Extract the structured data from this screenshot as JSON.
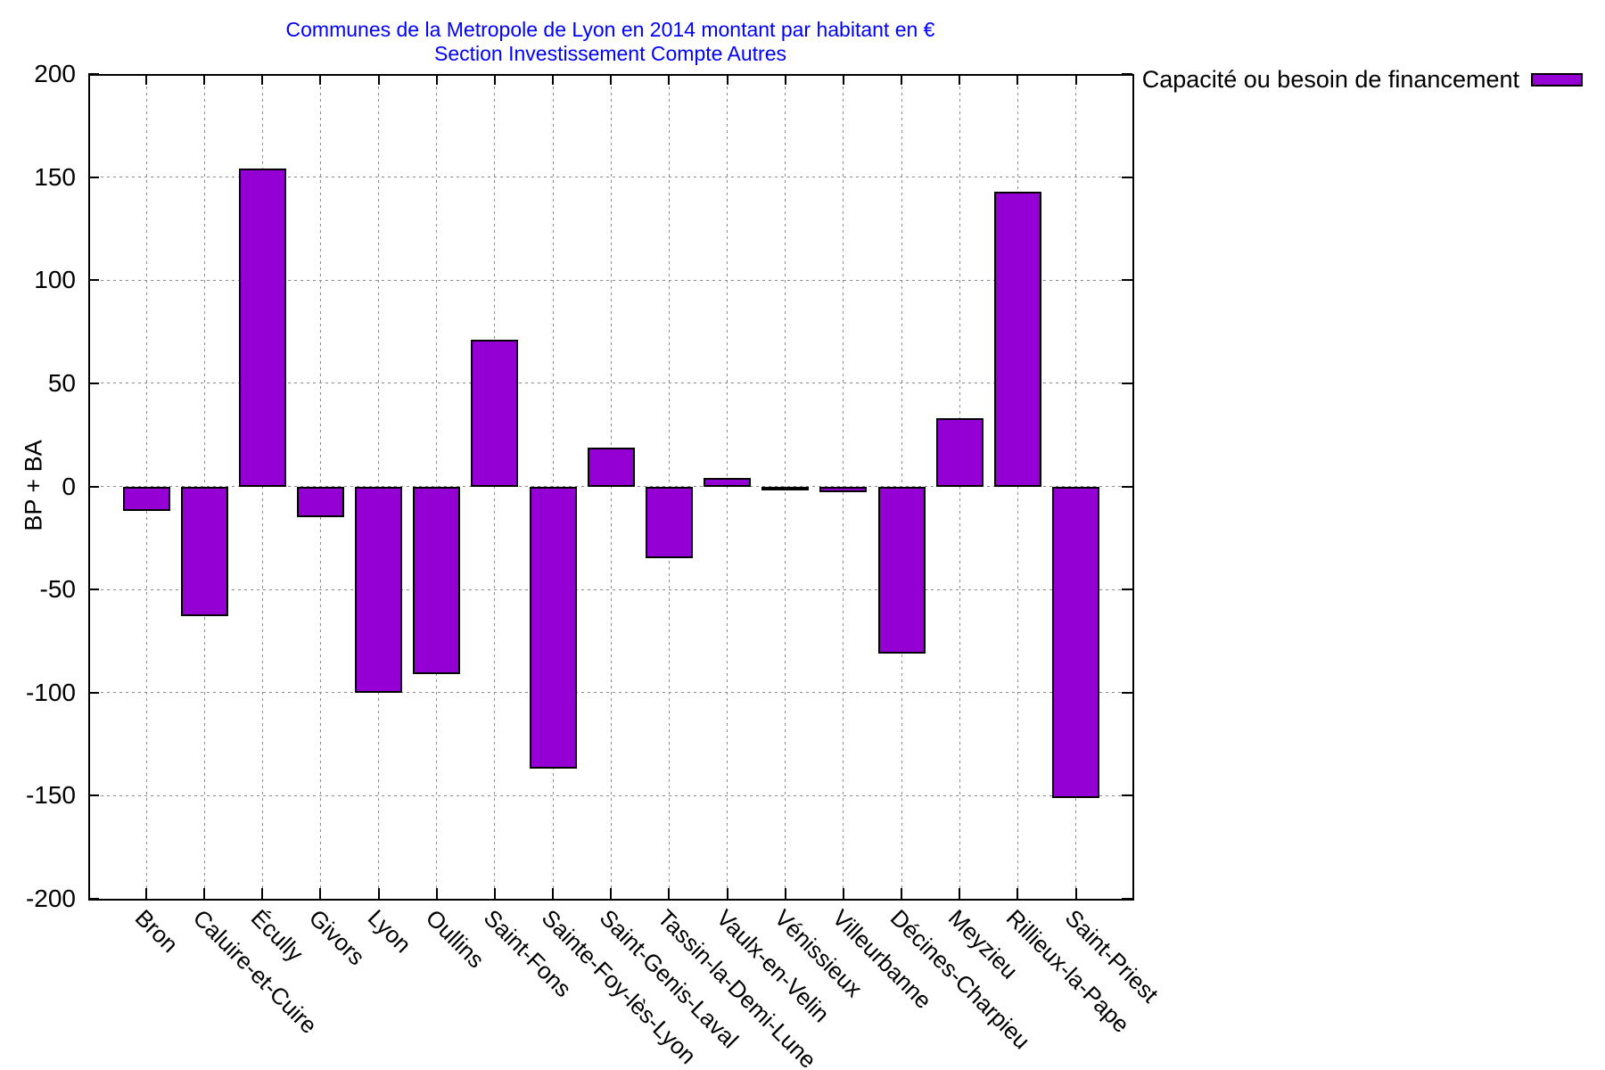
{
  "title": {
    "line1": "Communes de la Metropole de Lyon en 2014 montant par habitant en €",
    "line2": "Section Investissement Compte Autres",
    "color": "#0000ff"
  },
  "legend": {
    "label": "Capacité ou besoin de financement"
  },
  "chart_data": {
    "type": "bar",
    "title": "Communes de la Metropole de Lyon en 2014 montant par habitant en € / Section Investissement Compte Autres",
    "ylabel": "BP + BA",
    "xlabel": "",
    "ylim": [
      -200,
      200
    ],
    "ytick_step": 50,
    "grid": true,
    "legend_position": "top-right",
    "series_name": "Capacité ou besoin de financement",
    "bar_color": "#9400d3",
    "categories": [
      "Bron",
      "Caluire-et-Cuire",
      "Écully",
      "Givors",
      "Lyon",
      "Oullins",
      "Saint-Fons",
      "Sainte-Foy-lès-Lyon",
      "Saint-Genis-Laval",
      "Tassin-la-Demi-Lune",
      "Vaulx-en-Velin",
      "Vénissieux",
      "Villeurbanne",
      "Décines-Charpieu",
      "Meyzieu",
      "Rillieux-la-Pape",
      "Saint-Priest"
    ],
    "values": [
      -12,
      -63,
      154,
      -15,
      -100,
      -91,
      71,
      -137,
      19,
      -35,
      4,
      -2,
      -3,
      -81,
      33,
      143,
      -151
    ]
  }
}
